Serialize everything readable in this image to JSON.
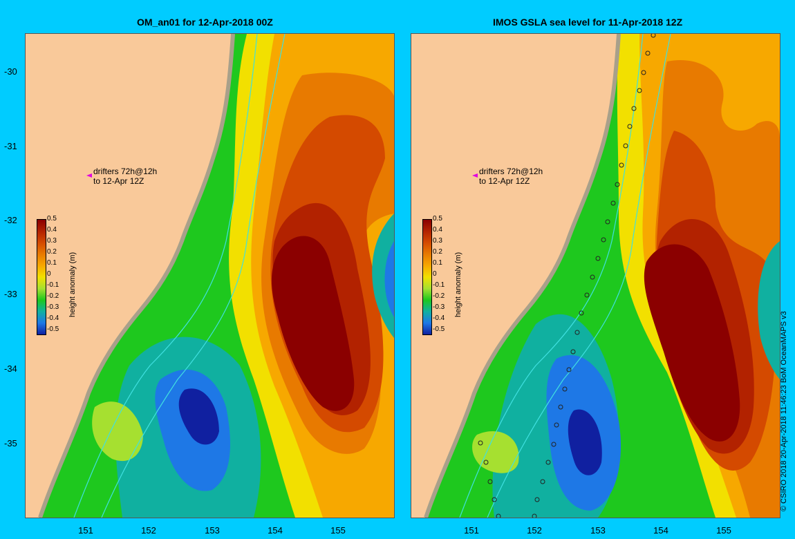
{
  "panels": [
    {
      "title": "OM_an01 for 12-Apr-2018 00Z"
    },
    {
      "title": "IMOS GSLA sea level  for 11-Apr-2018 12Z"
    }
  ],
  "y_ticks": [
    "-30",
    "-31",
    "-32",
    "-33",
    "-34",
    "-35"
  ],
  "x_ticks": [
    "151",
    "152",
    "153",
    "154",
    "155"
  ],
  "drifter_note": {
    "line1": "drifters 72h@12h",
    "line2": "to 12-Apr 12Z"
  },
  "colorbar": {
    "title": "height anomaly (m)",
    "labels": [
      "0.5",
      "0.4",
      "0.3",
      "0.2",
      "0.1",
      "0",
      "-0.1",
      "-0.2",
      "-0.3",
      "-0.4",
      "-0.5"
    ],
    "colors": [
      "#8b0000",
      "#b22200",
      "#d44a00",
      "#e87a00",
      "#f7a800",
      "#f2e000",
      "#a6e030",
      "#1ec81e",
      "#10b0a0",
      "#1e78e6",
      "#1020a0"
    ]
  },
  "credit": "© CSIRO 2018  20-Apr-2018 11:46:23 BoM OceanMAPS v3",
  "colors": {
    "background": "#00ccff",
    "land": "#f9c99a",
    "coast_shelf": "#a8a08a"
  }
}
